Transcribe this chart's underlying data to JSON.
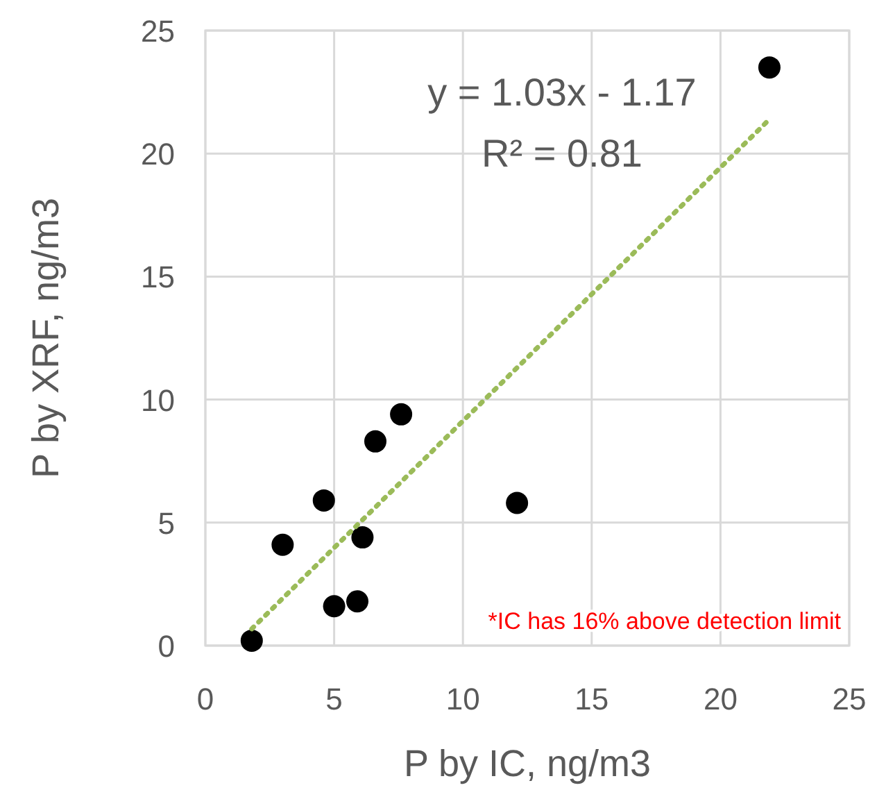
{
  "chart_data": {
    "type": "scatter",
    "xlabel": "P by IC, ng/m3",
    "ylabel": "P by XRF, ng/m3",
    "xlim": [
      0,
      25
    ],
    "xticks": [
      0,
      5,
      10,
      15,
      20,
      25
    ],
    "ylim": [
      0,
      25
    ],
    "yticks": [
      0,
      5,
      10,
      15,
      20,
      25
    ],
    "grid": true,
    "series": [
      {
        "color": "#000000",
        "marker": "circle",
        "x": [
          1.8,
          3.0,
          4.6,
          5.0,
          5.9,
          6.1,
          6.6,
          7.6,
          12.1,
          21.9
        ],
        "values": [
          0.2,
          4.1,
          5.9,
          1.6,
          1.8,
          4.4,
          8.3,
          9.4,
          5.8,
          23.5
        ]
      },
      {
        "type": "line",
        "color": "#9bbb59",
        "line_style": "dotted",
        "x": [
          1.8,
          21.9
        ],
        "values": [
          0.68,
          21.39
        ]
      }
    ],
    "annotations": [
      "y = 1.03x - 1.17",
      "R² = 0.81",
      "*IC has 16% above detection limit"
    ]
  }
}
